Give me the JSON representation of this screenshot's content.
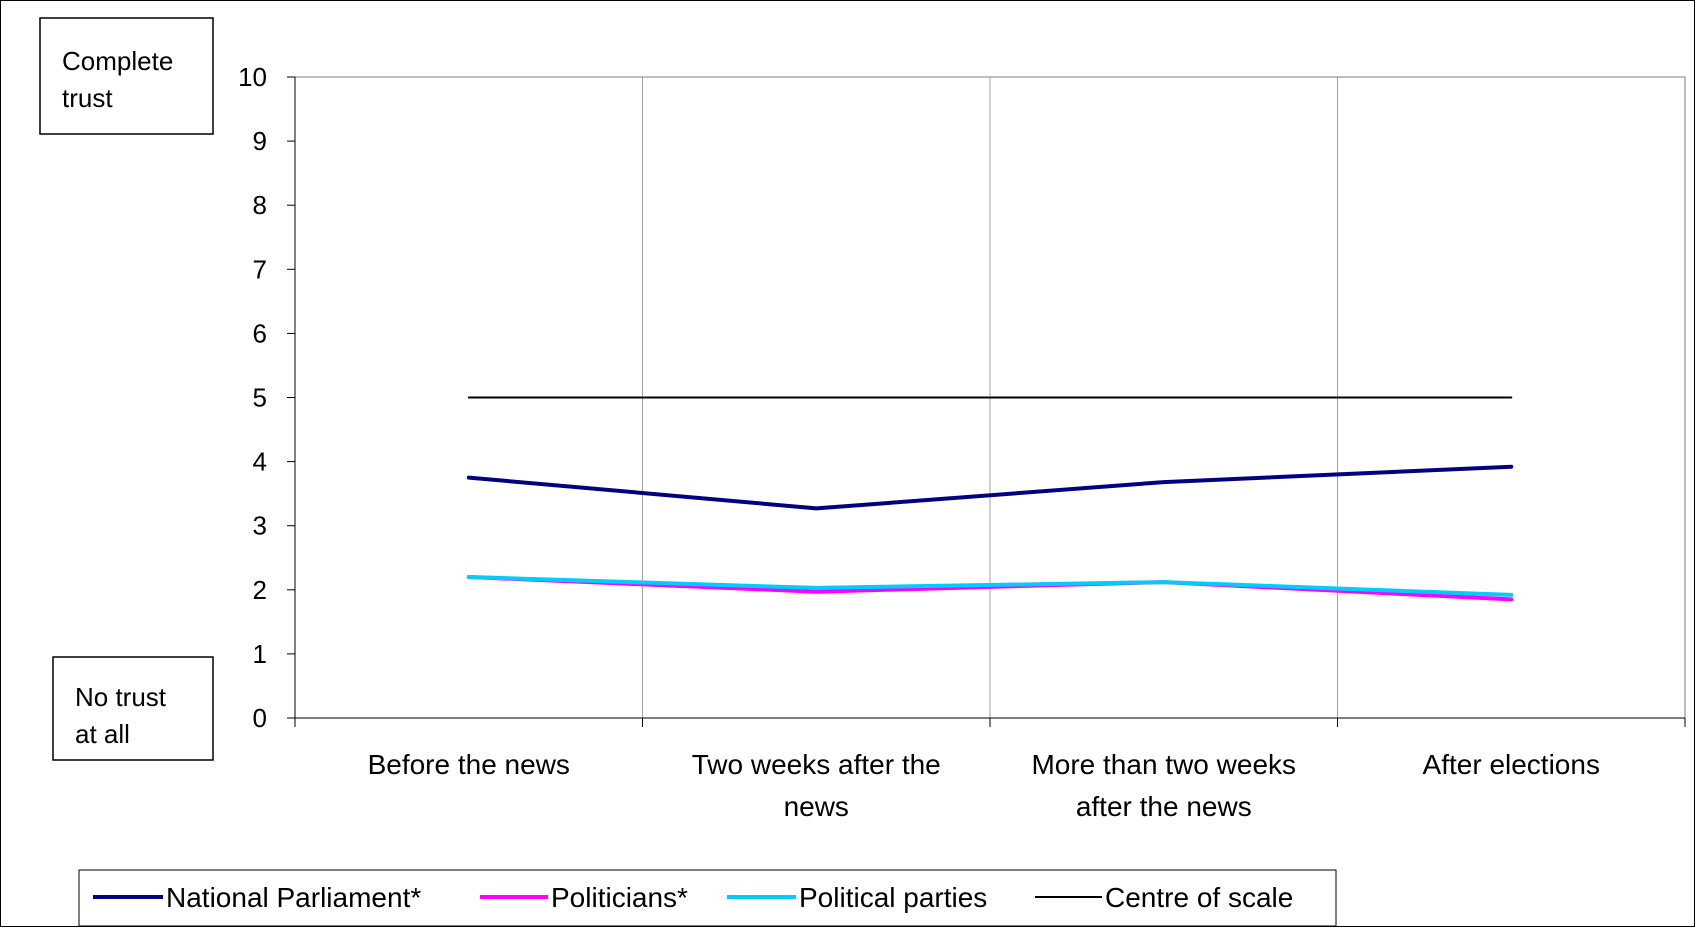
{
  "chart_data": {
    "type": "line",
    "categories": [
      [
        "Before the news"
      ],
      [
        "Two weeks after the",
        "news"
      ],
      [
        "More than two weeks",
        "after the news"
      ],
      [
        "After elections"
      ]
    ],
    "ylim": [
      0,
      10
    ],
    "yticks": [
      "0",
      "1",
      "2",
      "3",
      "4",
      "5",
      "6",
      "7",
      "8",
      "9",
      "10"
    ],
    "y_top_note": [
      "Complete",
      "trust"
    ],
    "y_bottom_note": [
      "No trust",
      "at all"
    ],
    "series": [
      {
        "name": "National Parliament*",
        "color": "#000080",
        "values": [
          3.75,
          3.27,
          3.68,
          3.92
        ]
      },
      {
        "name": "Politicians*",
        "color": "#ff00ff",
        "values": [
          2.2,
          1.97,
          2.12,
          1.85
        ]
      },
      {
        "name": "Political parties",
        "color": "#00ccff",
        "values": [
          2.2,
          2.03,
          2.12,
          1.92
        ]
      },
      {
        "name": "Centre of scale",
        "color": "#000000",
        "values": [
          5,
          5,
          5,
          5
        ]
      }
    ],
    "grid": "vertical",
    "legend_position": "bottom"
  }
}
